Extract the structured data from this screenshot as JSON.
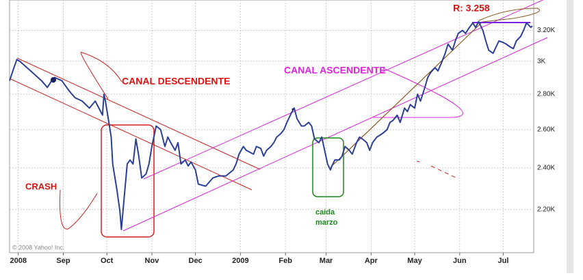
{
  "chart_data": {
    "type": "line",
    "log_y": true,
    "grid": true,
    "color": "#2b3f94",
    "xlim": [
      -6,
      355
    ],
    "xticks": [
      {
        "value": 0,
        "label": "2008"
      },
      {
        "value": 31,
        "label": "Sep"
      },
      {
        "value": 61,
        "label": "Oct"
      },
      {
        "value": 92,
        "label": "Nov"
      },
      {
        "value": 122,
        "label": "Dec"
      },
      {
        "value": 153,
        "label": "2009"
      },
      {
        "value": 184,
        "label": "Feb"
      },
      {
        "value": 212,
        "label": "Mar"
      },
      {
        "value": 243,
        "label": "Apr"
      },
      {
        "value": 273,
        "label": "May"
      },
      {
        "value": 304,
        "label": "Jun"
      },
      {
        "value": 334,
        "label": "Jul"
      }
    ],
    "ylim": [
      2010,
      3410
    ],
    "yticks": [
      {
        "value": 2200,
        "label": "2.20K"
      },
      {
        "value": 2400,
        "label": "2.40K"
      },
      {
        "value": 2600,
        "label": "2.60K"
      },
      {
        "value": 2800,
        "label": "2.80K"
      },
      {
        "value": 3000,
        "label": "3K"
      },
      {
        "value": 3200,
        "label": "3.20K"
      }
    ],
    "x": [
      -6,
      -3,
      -1,
      1,
      6,
      11,
      16,
      20,
      23,
      25,
      30,
      35,
      39,
      44,
      49,
      53,
      58,
      59,
      60,
      62,
      64,
      65,
      68,
      70,
      71,
      73,
      75,
      77,
      79,
      81,
      83,
      85,
      88,
      90,
      92,
      95,
      98,
      101,
      103,
      105,
      108,
      110,
      112,
      115,
      117,
      119,
      122,
      124,
      129,
      134,
      138,
      143,
      148,
      150,
      152,
      155,
      157,
      162,
      164,
      167,
      169,
      171,
      174,
      176,
      178,
      181,
      183,
      185,
      188,
      190,
      192,
      195,
      197,
      200,
      202,
      204,
      207,
      209,
      211,
      213,
      215,
      216,
      218,
      221,
      223,
      225,
      228,
      230,
      233,
      235,
      237,
      240,
      242,
      244,
      247,
      249,
      251,
      254,
      256,
      258,
      261,
      263,
      266,
      268,
      270,
      273,
      275,
      277,
      280,
      282,
      284,
      287,
      289,
      291,
      294,
      296,
      299,
      301,
      303,
      306,
      308,
      310,
      313,
      315,
      317,
      320,
      322,
      324,
      327,
      329,
      331,
      334,
      336,
      339,
      341,
      343,
      346,
      348,
      350,
      353,
      354
    ],
    "values": [
      2880,
      2960,
      3010,
      3000,
      2960,
      2920,
      2880,
      2840,
      2880,
      2900,
      2880,
      2820,
      2780,
      2760,
      2720,
      2760,
      2680,
      2800,
      2760,
      2660,
      2560,
      2420,
      2290,
      2190,
      2110,
      2260,
      2420,
      2440,
      2420,
      2550,
      2460,
      2350,
      2370,
      2420,
      2510,
      2620,
      2600,
      2510,
      2560,
      2530,
      2490,
      2530,
      2420,
      2440,
      2410,
      2430,
      2390,
      2320,
      2310,
      2350,
      2360,
      2360,
      2390,
      2420,
      2470,
      2510,
      2490,
      2470,
      2510,
      2500,
      2460,
      2490,
      2510,
      2530,
      2560,
      2580,
      2600,
      2640,
      2690,
      2720,
      2660,
      2620,
      2620,
      2640,
      2620,
      2550,
      2530,
      2560,
      2490,
      2420,
      2390,
      2410,
      2440,
      2440,
      2460,
      2510,
      2490,
      2470,
      2530,
      2560,
      2550,
      2530,
      2490,
      2530,
      2560,
      2570,
      2580,
      2600,
      2640,
      2650,
      2680,
      2640,
      2720,
      2700,
      2740,
      2720,
      2800,
      2760,
      2840,
      2900,
      2930,
      2960,
      2940,
      2980,
      3050,
      3110,
      3070,
      3130,
      3180,
      3200,
      3180,
      3210,
      3250,
      3220,
      3260,
      3200,
      3130,
      3070,
      3050,
      3090,
      3130,
      3120,
      3110,
      3090,
      3080,
      3130,
      3160,
      3200,
      3250,
      3220,
      3230
    ],
    "annotations": [
      "CANAL DESCENDENTE",
      "CANAL ASCENDENTE",
      "CRASH",
      "caida",
      "marzo",
      "R: 3.258"
    ],
    "credit": "© 2008 Yahoo! Inc."
  }
}
